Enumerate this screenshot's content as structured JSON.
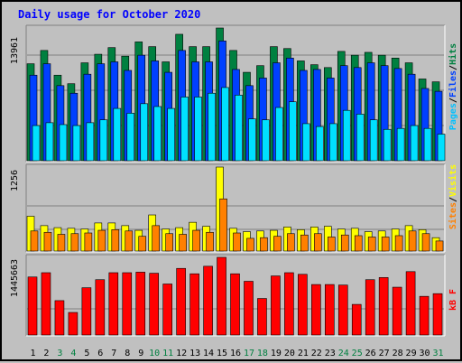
{
  "chart_data": [
    {
      "type": "bar",
      "title": "Daily usage for October 2020",
      "categories": [
        "1",
        "2",
        "3",
        "4",
        "5",
        "6",
        "7",
        "8",
        "9",
        "10",
        "11",
        "12",
        "13",
        "14",
        "15",
        "16",
        "17",
        "18",
        "19",
        "20",
        "21",
        "22",
        "23",
        "24",
        "25",
        "26",
        "27",
        "28",
        "29",
        "30",
        "31"
      ],
      "weekend_days": [
        "3",
        "4",
        "10",
        "11",
        "17",
        "18",
        "24",
        "25",
        "31"
      ],
      "ylim": [
        0,
        13961
      ],
      "y_tick_label": "13961",
      "legend": [
        "Pages",
        "/",
        "Files",
        "/",
        "Hits"
      ],
      "series": [
        {
          "name": "Hits",
          "color": "#008040",
          "values": [
            10200,
            11600,
            9000,
            8100,
            10300,
            11200,
            11900,
            11000,
            12500,
            12000,
            10400,
            13300,
            12000,
            12000,
            13961,
            11600,
            9300,
            10000,
            12000,
            11800,
            10500,
            10100,
            9800,
            11500,
            11100,
            11400,
            11100,
            10800,
            10300,
            8600,
            8300
          ]
        },
        {
          "name": "Files",
          "color": "#0040ff",
          "values": [
            9000,
            10200,
            7900,
            7100,
            9100,
            10200,
            10400,
            9500,
            11100,
            10500,
            9300,
            11600,
            10400,
            10400,
            12600,
            9600,
            7900,
            8700,
            10300,
            10800,
            9500,
            9600,
            8700,
            10000,
            9800,
            10300,
            10000,
            9700,
            9100,
            7600,
            7300
          ]
        },
        {
          "name": "Pages",
          "color": "#00e0ff",
          "values": [
            3700,
            4000,
            3800,
            3700,
            4000,
            4300,
            5500,
            5000,
            6000,
            5700,
            5500,
            6700,
            6700,
            7100,
            7700,
            6900,
            4400,
            4300,
            5600,
            6200,
            3900,
            3600,
            3900,
            5300,
            4900,
            4300,
            3300,
            3400,
            3700,
            3400,
            2800
          ]
        }
      ]
    },
    {
      "type": "bar",
      "categories": [
        "1",
        "2",
        "3",
        "4",
        "5",
        "6",
        "7",
        "8",
        "9",
        "10",
        "11",
        "12",
        "13",
        "14",
        "15",
        "16",
        "17",
        "18",
        "19",
        "20",
        "21",
        "22",
        "23",
        "24",
        "25",
        "26",
        "27",
        "28",
        "29",
        "30",
        "31"
      ],
      "ylim": [
        0,
        1256
      ],
      "y_tick_label": "1256",
      "legend": [
        "Sites",
        "/",
        "Visits"
      ],
      "series": [
        {
          "name": "Visits",
          "color": "#ffff00",
          "values": [
            520,
            380,
            350,
            340,
            330,
            420,
            420,
            380,
            310,
            540,
            330,
            350,
            430,
            370,
            1256,
            340,
            290,
            300,
            310,
            360,
            320,
            360,
            370,
            330,
            340,
            290,
            300,
            330,
            380,
            320,
            200
          ]
        },
        {
          "name": "Sites",
          "color": "#ff8000",
          "values": [
            300,
            280,
            250,
            260,
            270,
            310,
            320,
            300,
            220,
            380,
            260,
            250,
            310,
            280,
            780,
            270,
            190,
            200,
            220,
            260,
            240,
            260,
            210,
            240,
            230,
            210,
            210,
            230,
            300,
            260,
            150
          ]
        }
      ]
    },
    {
      "type": "bar",
      "categories": [
        "1",
        "2",
        "3",
        "4",
        "5",
        "6",
        "7",
        "8",
        "9",
        "10",
        "11",
        "12",
        "13",
        "14",
        "15",
        "16",
        "17",
        "18",
        "19",
        "20",
        "21",
        "22",
        "23",
        "24",
        "25",
        "26",
        "27",
        "28",
        "29",
        "30",
        "31"
      ],
      "ylim": [
        0,
        1445663
      ],
      "y_tick_label": "1445663",
      "legend": [
        "kB F"
      ],
      "series": [
        {
          "name": "kB F",
          "color": "#ff0000",
          "values": [
            1080000,
            1160000,
            640000,
            420000,
            880000,
            1030000,
            1160000,
            1160000,
            1170000,
            1150000,
            950000,
            1240000,
            1140000,
            1280000,
            1445663,
            1140000,
            1000000,
            680000,
            1100000,
            1160000,
            1130000,
            940000,
            940000,
            930000,
            570000,
            1030000,
            1070000,
            890000,
            1180000,
            720000,
            770000
          ]
        }
      ]
    }
  ]
}
